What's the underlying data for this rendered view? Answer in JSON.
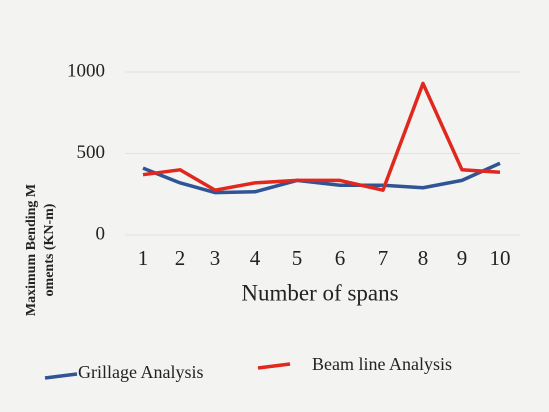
{
  "chart_data": {
    "type": "line",
    "xlabel": "Number of spans",
    "ylabel": [
      "Maximum Bending M",
      "oments (KN-m)"
    ],
    "categories": [
      "1",
      "2",
      "3",
      "4",
      "5",
      "6",
      "7",
      "8",
      "9",
      "10"
    ],
    "series": [
      {
        "name": "Grillage Analysis",
        "color": "#2f5597",
        "values": [
          410,
          320,
          260,
          265,
          335,
          305,
          305,
          290,
          335,
          440
        ]
      },
      {
        "name": "Beam line Analysis",
        "color": "#e0281e",
        "values": [
          370,
          400,
          275,
          320,
          335,
          335,
          275,
          930,
          400,
          385
        ]
      }
    ],
    "ylim": [
      0,
      1000
    ],
    "yticks": [
      0,
      500,
      1000
    ],
    "grid": true
  }
}
